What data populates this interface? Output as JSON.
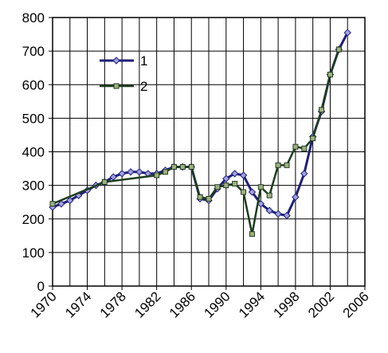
{
  "chart_data": {
    "type": "line",
    "xlim": [
      1970,
      2006
    ],
    "xticks": [
      1970,
      1974,
      1978,
      1982,
      1986,
      1990,
      1994,
      1998,
      2002,
      2006
    ],
    "xminorticks": [
      1972,
      1976,
      1980,
      1984,
      1988,
      1992,
      1996,
      2000,
      2004
    ],
    "ylim": [
      0,
      800
    ],
    "yticks": [
      0,
      100,
      200,
      300,
      400,
      500,
      600,
      700,
      800
    ],
    "grid": true,
    "legend": "upper-left",
    "series": [
      {
        "name": "1",
        "color": "#1f1f7a",
        "marker": "diamond",
        "x": [
          1970,
          1971,
          1972,
          1973,
          1974,
          1975,
          1976,
          1977,
          1978,
          1979,
          1980,
          1981,
          1982,
          1983,
          1984,
          1985,
          1986,
          1987,
          1988,
          1989,
          1990,
          1991,
          1992,
          1993,
          1994,
          1995,
          1996,
          1997,
          1998,
          1999,
          2000,
          2001,
          2002,
          2003,
          2004
        ],
        "values": [
          235,
          245,
          255,
          270,
          285,
          300,
          310,
          325,
          335,
          340,
          340,
          335,
          335,
          345,
          355,
          355,
          355,
          260,
          255,
          290,
          320,
          335,
          330,
          280,
          245,
          225,
          215,
          210,
          265,
          335,
          445,
          520,
          630,
          705,
          755
        ]
      },
      {
        "name": "2",
        "color": "#1e3d1e",
        "marker": "square",
        "x": [
          1970,
          1976,
          1982,
          1983,
          1984,
          1985,
          1986,
          1987,
          1988,
          1989,
          1990,
          1991,
          1992,
          1993,
          1994,
          1995,
          1996,
          1997,
          1998,
          1999,
          2000,
          2001,
          2002,
          2003
        ],
        "values": [
          245,
          310,
          330,
          340,
          355,
          355,
          355,
          265,
          260,
          295,
          300,
          305,
          280,
          155,
          295,
          270,
          360,
          360,
          415,
          410,
          440,
          525,
          630,
          705
        ]
      }
    ]
  }
}
